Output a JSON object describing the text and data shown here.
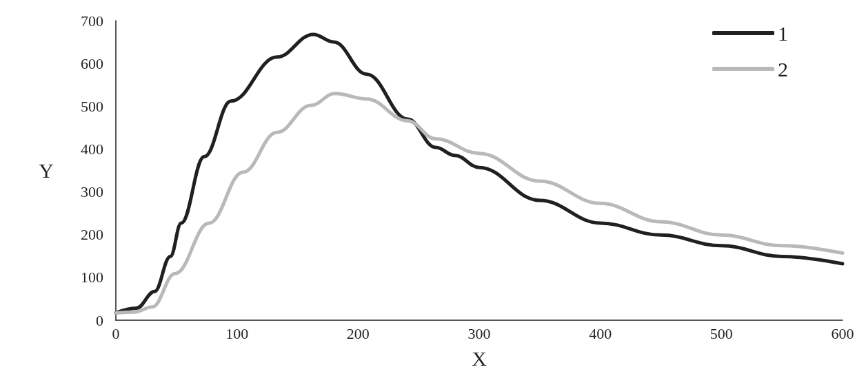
{
  "chart_data": {
    "type": "line",
    "xlabel": "X",
    "ylabel": "Y",
    "xlim": [
      0,
      600
    ],
    "xticks": [
      0,
      100,
      200,
      300,
      400,
      500,
      600
    ],
    "ylim": [
      0,
      700
    ],
    "yticks": [
      0,
      100,
      200,
      300,
      400,
      500,
      600,
      700
    ],
    "grid": false,
    "legend": "top right",
    "marker": "none",
    "line_style": "solid",
    "series": [
      {
        "name": "1",
        "color": "#231f20",
        "x": [
          0,
          17,
          32,
          45,
          54,
          73,
          95,
          133,
          163,
          180,
          207,
          241,
          264,
          280,
          300,
          350,
          400,
          450,
          500,
          550,
          600
        ],
        "values": [
          17,
          28,
          67,
          149,
          227,
          382,
          512,
          615,
          668,
          650,
          575,
          470,
          404,
          385,
          357,
          280,
          227,
          199,
          174,
          149,
          132
        ]
      },
      {
        "name": "2",
        "color": "#b8b9bd",
        "x": [
          0,
          15,
          30,
          49,
          77,
          105,
          133,
          161,
          181,
          207,
          241,
          264,
          300,
          350,
          400,
          450,
          500,
          550,
          600
        ],
        "values": [
          17,
          19,
          31,
          109,
          227,
          346,
          439,
          502,
          530,
          517,
          466,
          424,
          390,
          325,
          273,
          230,
          199,
          174,
          157
        ]
      }
    ]
  }
}
